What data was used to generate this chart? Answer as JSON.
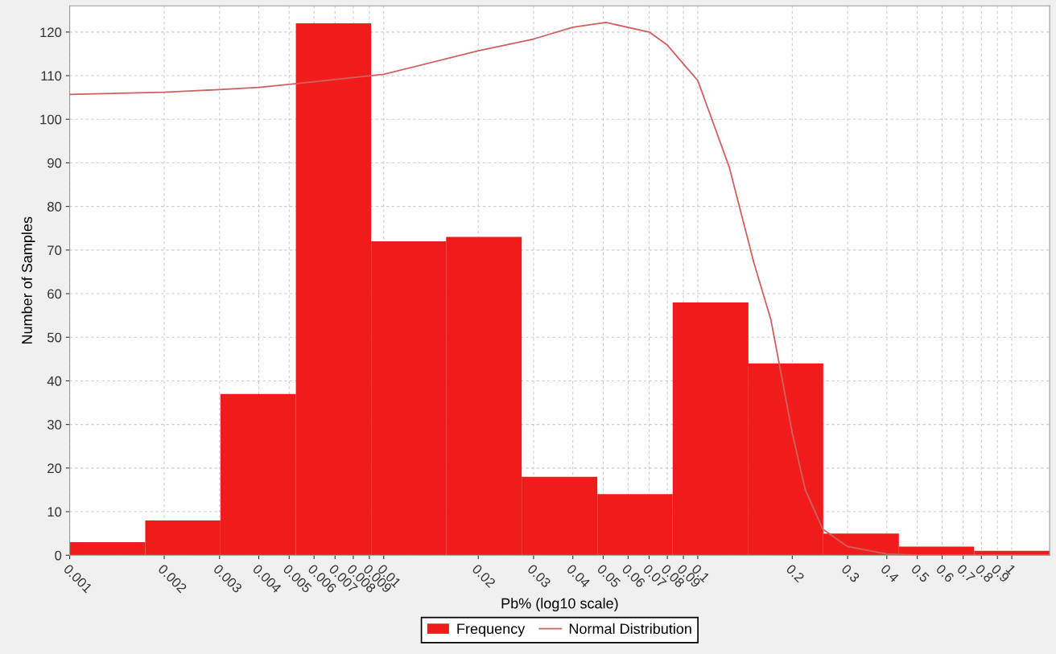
{
  "chart_data": {
    "type": "histogram",
    "xlabel": "Pb% (log10 scale)",
    "ylabel": "Number of Samples",
    "log": "x",
    "bins": [
      0.001,
      0.00174,
      0.00302,
      0.00525,
      0.00912,
      0.0158,
      0.0275,
      0.0479,
      0.0832,
      0.145,
      0.251,
      0.437,
      0.759,
      1.32
    ],
    "series": [
      {
        "name": "Frequency",
        "color": "#f01c1c",
        "values": [
          3,
          8,
          37,
          122,
          72,
          73,
          18,
          14,
          58,
          44,
          5,
          2,
          1
        ]
      },
      {
        "name": "Normal Distribution",
        "type": "line",
        "color": "#d06060",
        "x": [
          0.001,
          0.002,
          0.003,
          0.004,
          0.005,
          0.01,
          0.02,
          0.03,
          0.04,
          0.051,
          0.07,
          0.08,
          0.09,
          0.1,
          0.126,
          0.151,
          0.171,
          0.2,
          0.22,
          0.25,
          0.3,
          0.4,
          0.5,
          1.32
        ],
        "values": [
          105.7,
          106.2,
          106.8,
          107.3,
          108,
          110.3,
          115.7,
          118.4,
          121.1,
          122.2,
          120,
          117,
          112.7,
          108.9,
          89,
          67,
          54,
          28,
          15,
          6,
          2,
          0.3,
          0,
          0
        ]
      }
    ],
    "xlim": [
      0.001,
      1.32
    ],
    "ylim": [
      0,
      126
    ],
    "xticks": [
      0.001,
      0.002,
      0.003,
      0.004,
      0.005,
      0.006,
      0.007,
      0.008,
      0.009,
      0.01,
      0.02,
      0.03,
      0.04,
      0.05,
      0.06,
      0.07,
      0.08,
      0.09,
      0.1,
      0.2,
      0.3,
      0.4,
      0.5,
      0.6,
      0.7,
      0.8,
      0.9,
      1
    ],
    "yticks": [
      0,
      10,
      20,
      30,
      40,
      50,
      60,
      70,
      80,
      90,
      100,
      110,
      120
    ],
    "grid": true,
    "legend": "bottom"
  }
}
